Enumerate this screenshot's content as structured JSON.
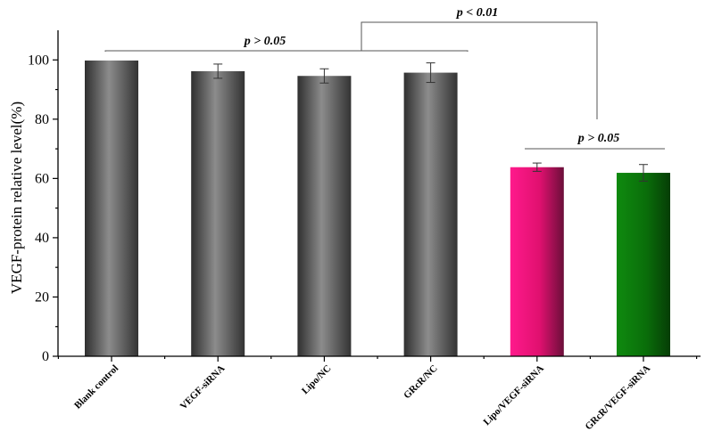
{
  "chart_data": {
    "type": "bar",
    "xlabel": "",
    "ylabel": "VEGF-protein relative level(%)",
    "ylim": [
      0,
      110
    ],
    "yticks": [
      0,
      20,
      40,
      60,
      80,
      100
    ],
    "grid": false,
    "categories": [
      "Blank control",
      "VEGF-siRNA",
      "Lipo/NC",
      "GRcR/NC",
      "Lipo/VEGF-siRNA",
      "GRcR/VEGF-siRNA"
    ],
    "values": [
      99.8,
      96.2,
      94.6,
      95.7,
      63.8,
      61.9
    ],
    "errors": [
      0,
      2.4,
      2.4,
      3.3,
      1.4,
      2.8
    ],
    "colors": [
      "#2f2f2f",
      "#2f2f2f",
      "#2f2f2f",
      "#2f2f2f",
      "#ff0f7b",
      "#0c7a0c"
    ],
    "highlight_colors": [
      "#8c8c8c",
      "#8c8c8c",
      "#8c8c8c",
      "#8c8c8c",
      "#ff1a8c",
      "#0f7f0f"
    ],
    "annotations": [
      {
        "label": "p > 0.05",
        "group": "control-group"
      },
      {
        "label": "p < 0.01",
        "group": "between-groups"
      },
      {
        "label": "p > 0.05",
        "group": "siRNA-group"
      }
    ]
  }
}
